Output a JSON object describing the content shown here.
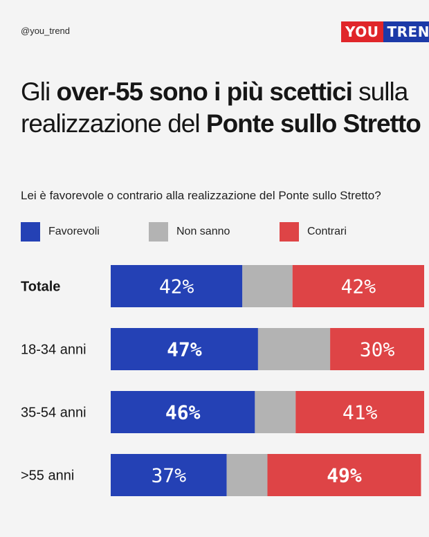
{
  "header": {
    "handle": "@you_trend",
    "logo_part1": "YOU",
    "logo_part2": "TREND"
  },
  "title": {
    "p1": "Gli ",
    "b1": "over-55 sono i più scettici",
    "p2": " sulla realizzazione del ",
    "b2": "Ponte sullo Stretto"
  },
  "subtitle": "Lei è favorevole o contrario alla realizzazione del Ponte sullo Stretto?",
  "colors": {
    "favorevoli": "#2441b5",
    "non_sanno": "#b3b3b3",
    "contrari": "#de4446"
  },
  "chart_data": {
    "type": "bar",
    "orientation": "horizontal",
    "stacked": true,
    "percent_suffix": "%",
    "categories": [
      "Totale",
      "18-34 anni",
      "35-54 anni",
      ">55 anni"
    ],
    "series": [
      {
        "name": "Favorevoli",
        "values": [
          42,
          47,
          46,
          37
        ]
      },
      {
        "name": "Non sanno",
        "values": [
          16,
          23,
          13,
          13
        ]
      },
      {
        "name": "Contrari",
        "values": [
          42,
          30,
          41,
          49
        ]
      }
    ],
    "bold_category": "Totale",
    "bold_value_labels": [
      [
        false,
        false
      ],
      [
        true,
        false
      ],
      [
        true,
        false
      ],
      [
        false,
        true
      ]
    ],
    "legend_placement": "top-left"
  }
}
